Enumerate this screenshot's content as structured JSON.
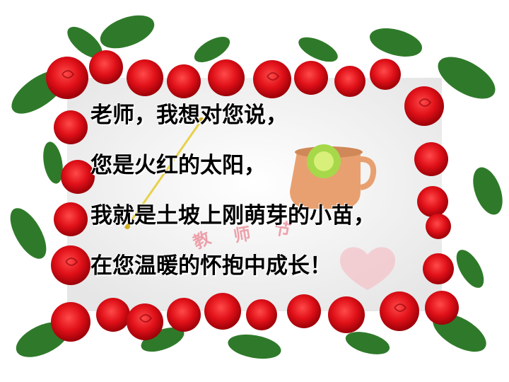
{
  "card": {
    "lines": [
      "老师，我想对您说，",
      "您是火红的太阳，",
      "我就是土坡上刚萌芽的小苗，",
      "在您温暖的怀抱中成长！"
    ],
    "background_text": [
      "教",
      "师",
      "节"
    ]
  },
  "colors": {
    "rose_red": "#e01018",
    "rose_dark": "#a00008",
    "leaf_green": "#2f7a2a",
    "card_bg": "#f4f4f4",
    "teapot": "#e8a070",
    "text": "#000000"
  }
}
